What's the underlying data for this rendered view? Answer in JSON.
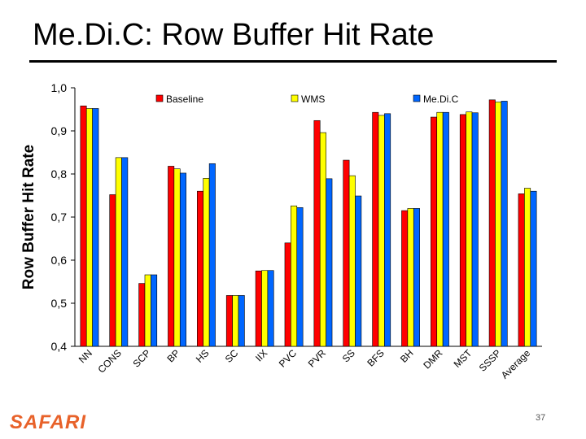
{
  "slide": {
    "title": "Me.Di.C: Row Buffer Hit Rate",
    "logo": "SAFARI",
    "page_number": "37"
  },
  "chart_data": {
    "type": "bar",
    "title": "",
    "xlabel": "",
    "ylabel": "Row Buffer Hit Rate",
    "ylim": [
      0.4,
      1.0
    ],
    "yticks": [
      "0,4",
      "0,5",
      "0,6",
      "0,7",
      "0,8",
      "0,9",
      "1,0"
    ],
    "grid": false,
    "legend_position": "top",
    "categories": [
      "NN",
      "CONS",
      "SCP",
      "BP",
      "HS",
      "SC",
      "IIX",
      "PVC",
      "PVR",
      "SS",
      "BFS",
      "BH",
      "DMR",
      "MST",
      "SSSP",
      "Average"
    ],
    "series": [
      {
        "name": "Baseline",
        "color": "#ff0000",
        "values": [
          0.958,
          0.752,
          0.546,
          0.818,
          0.76,
          0.518,
          0.575,
          0.64,
          0.924,
          0.832,
          0.943,
          0.715,
          0.932,
          0.938,
          0.972,
          0.754
        ]
      },
      {
        "name": "WMS",
        "color": "#ffff00",
        "values": [
          0.952,
          0.838,
          0.566,
          0.812,
          0.79,
          0.518,
          0.576,
          0.726,
          0.896,
          0.796,
          0.936,
          0.72,
          0.943,
          0.944,
          0.967,
          0.767
        ]
      },
      {
        "name": "Me.Di.C",
        "color": "#0066ff",
        "values": [
          0.952,
          0.838,
          0.566,
          0.802,
          0.824,
          0.518,
          0.576,
          0.722,
          0.789,
          0.749,
          0.94,
          0.72,
          0.943,
          0.942,
          0.969,
          0.76
        ]
      }
    ]
  }
}
